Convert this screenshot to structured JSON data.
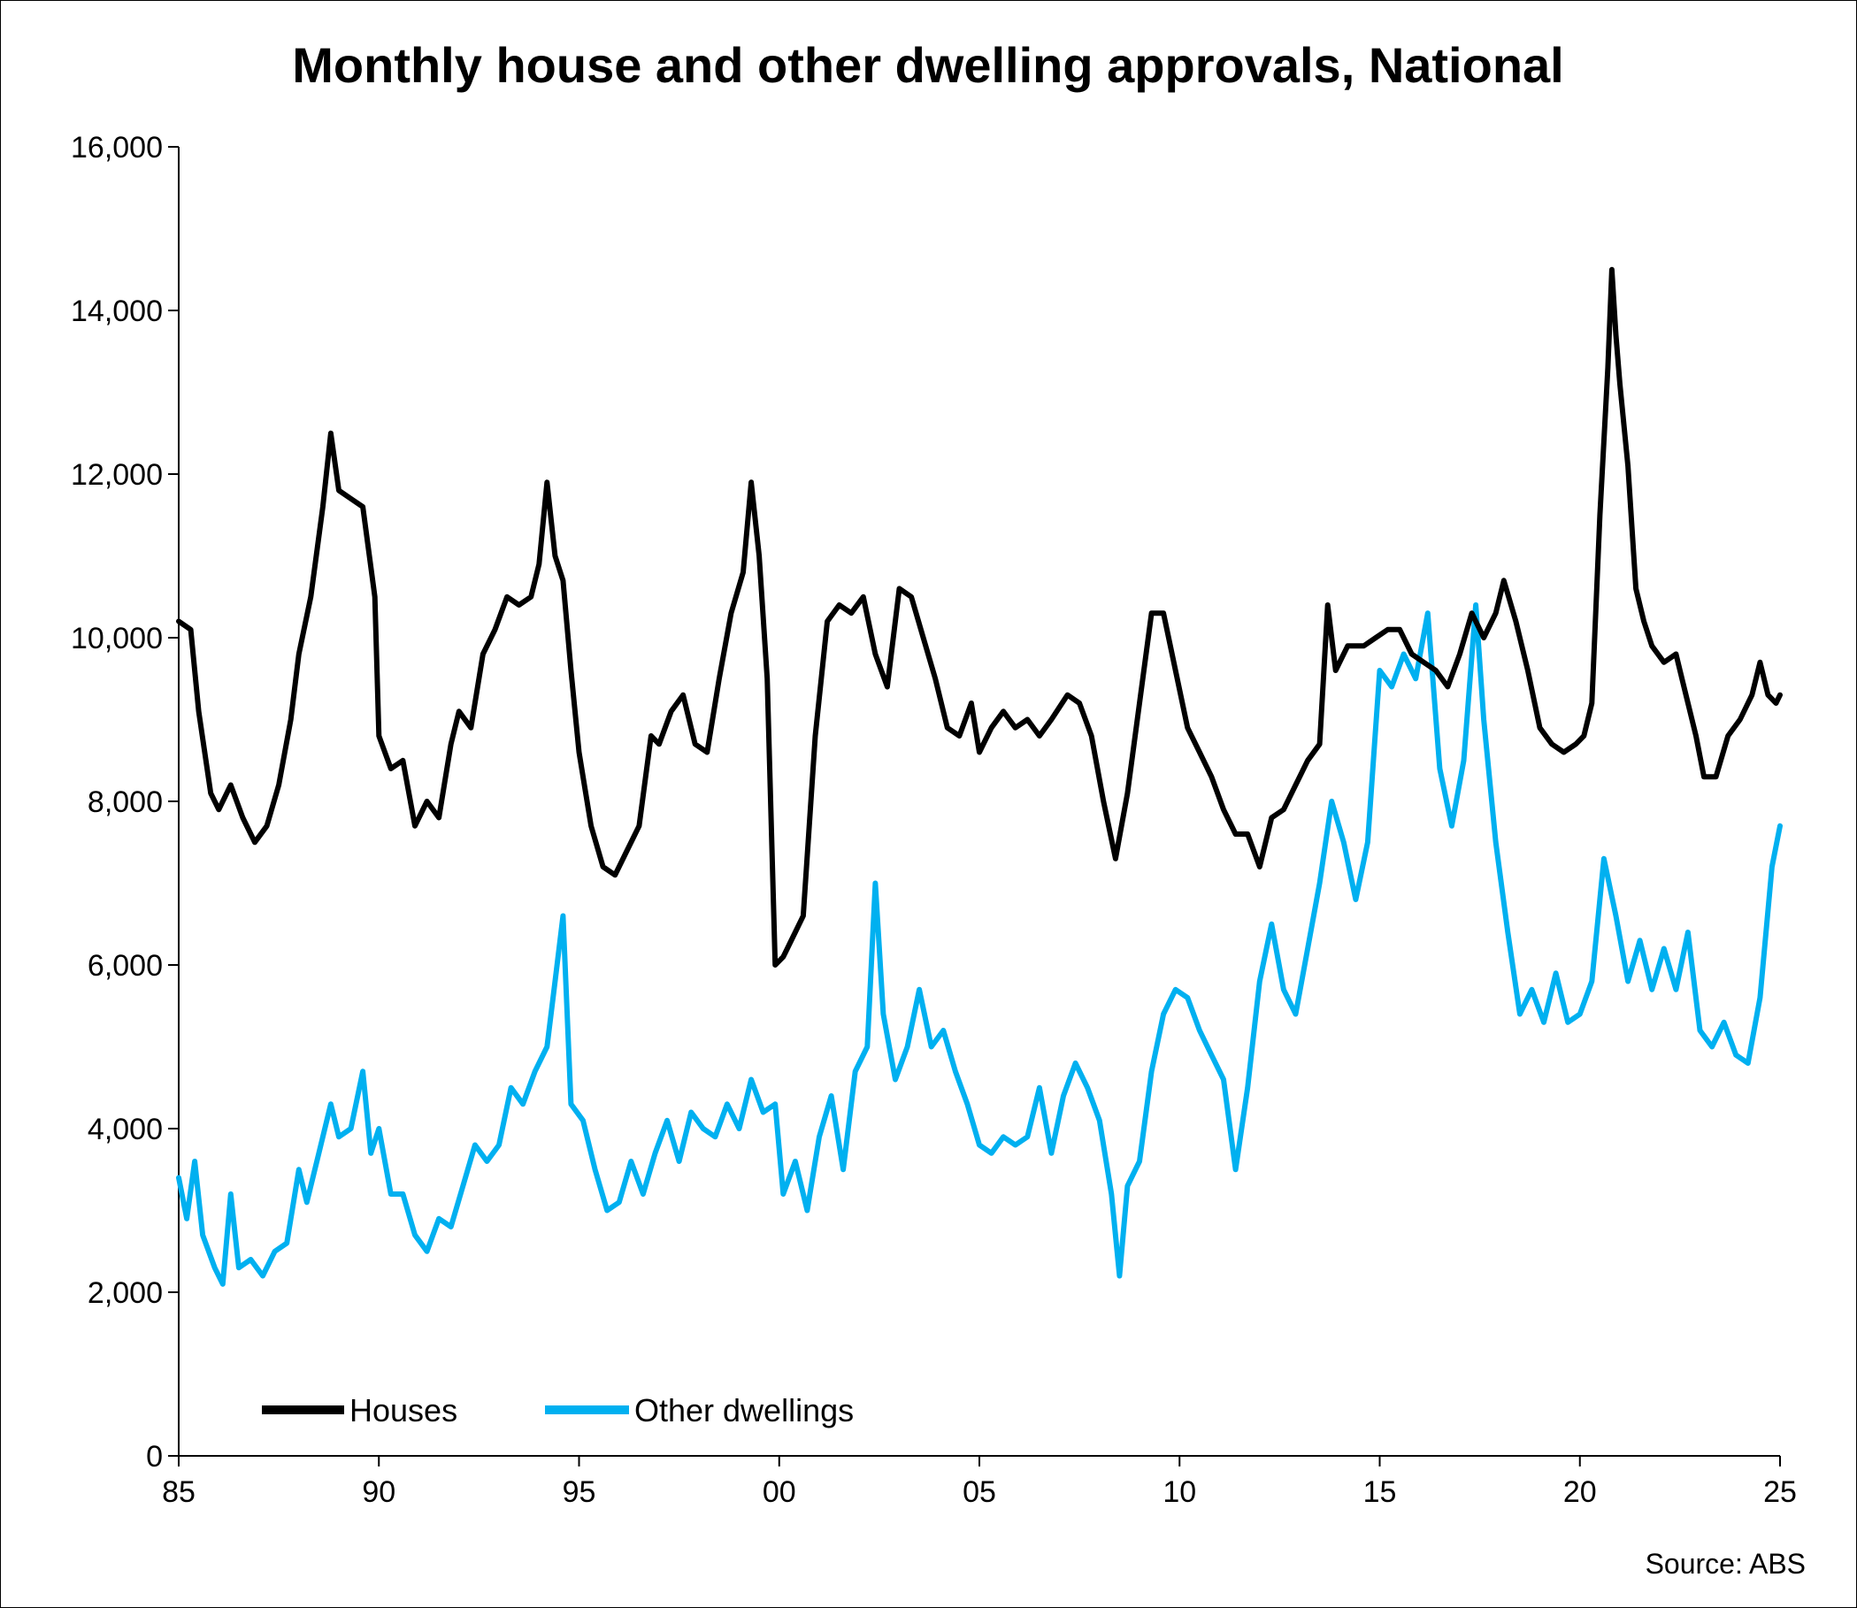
{
  "chart_data": {
    "type": "line",
    "title": "Monthly house and other dwelling approvals, National",
    "source": "Source: ABS",
    "xlabel": "",
    "ylabel": "",
    "xlim": [
      1985,
      2025
    ],
    "ylim": [
      0,
      16000
    ],
    "x_ticks": [
      {
        "value": 1985,
        "label": "85"
      },
      {
        "value": 1990,
        "label": "90"
      },
      {
        "value": 1995,
        "label": "95"
      },
      {
        "value": 2000,
        "label": "00"
      },
      {
        "value": 2005,
        "label": "05"
      },
      {
        "value": 2010,
        "label": "10"
      },
      {
        "value": 2015,
        "label": "15"
      },
      {
        "value": 2020,
        "label": "20"
      },
      {
        "value": 2025,
        "label": "25"
      }
    ],
    "y_ticks": [
      {
        "value": 0,
        "label": "0"
      },
      {
        "value": 2000,
        "label": "2,000"
      },
      {
        "value": 4000,
        "label": "4,000"
      },
      {
        "value": 6000,
        "label": "6,000"
      },
      {
        "value": 8000,
        "label": "8,000"
      },
      {
        "value": 10000,
        "label": "10,000"
      },
      {
        "value": 12000,
        "label": "12,000"
      },
      {
        "value": 14000,
        "label": "14,000"
      },
      {
        "value": 16000,
        "label": "16,000"
      }
    ],
    "legend_position": "bottom-left",
    "series": [
      {
        "name": "Houses",
        "color": "#000000",
        "points": [
          [
            1985.0,
            10200
          ],
          [
            1985.3,
            10100
          ],
          [
            1985.5,
            9100
          ],
          [
            1985.8,
            8100
          ],
          [
            1986.0,
            7900
          ],
          [
            1986.3,
            8200
          ],
          [
            1986.6,
            7800
          ],
          [
            1986.9,
            7500
          ],
          [
            1987.2,
            7700
          ],
          [
            1987.5,
            8200
          ],
          [
            1987.8,
            9000
          ],
          [
            1988.0,
            9800
          ],
          [
            1988.3,
            10500
          ],
          [
            1988.6,
            11600
          ],
          [
            1988.8,
            12500
          ],
          [
            1989.0,
            11800
          ],
          [
            1989.3,
            11700
          ],
          [
            1989.6,
            11600
          ],
          [
            1989.9,
            10500
          ],
          [
            1990.0,
            8800
          ],
          [
            1990.3,
            8400
          ],
          [
            1990.6,
            8500
          ],
          [
            1990.9,
            7700
          ],
          [
            1991.2,
            8000
          ],
          [
            1991.5,
            7800
          ],
          [
            1991.8,
            8700
          ],
          [
            1992.0,
            9100
          ],
          [
            1992.3,
            8900
          ],
          [
            1992.6,
            9800
          ],
          [
            1992.9,
            10100
          ],
          [
            1993.2,
            10500
          ],
          [
            1993.5,
            10400
          ],
          [
            1993.8,
            10500
          ],
          [
            1994.0,
            10900
          ],
          [
            1994.2,
            11900
          ],
          [
            1994.4,
            11000
          ],
          [
            1994.6,
            10700
          ],
          [
            1994.8,
            9600
          ],
          [
            1995.0,
            8600
          ],
          [
            1995.3,
            7700
          ],
          [
            1995.6,
            7200
          ],
          [
            1995.9,
            7100
          ],
          [
            1996.2,
            7400
          ],
          [
            1996.5,
            7700
          ],
          [
            1996.8,
            8800
          ],
          [
            1997.0,
            8700
          ],
          [
            1997.3,
            9100
          ],
          [
            1997.6,
            9300
          ],
          [
            1997.9,
            8700
          ],
          [
            1998.2,
            8600
          ],
          [
            1998.5,
            9500
          ],
          [
            1998.8,
            10300
          ],
          [
            1999.1,
            10800
          ],
          [
            1999.3,
            11900
          ],
          [
            1999.5,
            11000
          ],
          [
            1999.7,
            9500
          ],
          [
            1999.9,
            6000
          ],
          [
            2000.1,
            6100
          ],
          [
            2000.4,
            6400
          ],
          [
            2000.6,
            6600
          ],
          [
            2000.9,
            8800
          ],
          [
            2001.2,
            10200
          ],
          [
            2001.5,
            10400
          ],
          [
            2001.8,
            10300
          ],
          [
            2002.1,
            10500
          ],
          [
            2002.4,
            9800
          ],
          [
            2002.7,
            9400
          ],
          [
            2003.0,
            10600
          ],
          [
            2003.3,
            10500
          ],
          [
            2003.6,
            10000
          ],
          [
            2003.9,
            9500
          ],
          [
            2004.2,
            8900
          ],
          [
            2004.5,
            8800
          ],
          [
            2004.8,
            9200
          ],
          [
            2005.0,
            8600
          ],
          [
            2005.3,
            8900
          ],
          [
            2005.6,
            9100
          ],
          [
            2005.9,
            8900
          ],
          [
            2006.2,
            9000
          ],
          [
            2006.5,
            8800
          ],
          [
            2006.8,
            9000
          ],
          [
            2007.2,
            9300
          ],
          [
            2007.5,
            9200
          ],
          [
            2007.8,
            8800
          ],
          [
            2008.1,
            8000
          ],
          [
            2008.4,
            7300
          ],
          [
            2008.7,
            8100
          ],
          [
            2009.0,
            9200
          ],
          [
            2009.3,
            10300
          ],
          [
            2009.6,
            10300
          ],
          [
            2009.9,
            9600
          ],
          [
            2010.2,
            8900
          ],
          [
            2010.5,
            8600
          ],
          [
            2010.8,
            8300
          ],
          [
            2011.1,
            7900
          ],
          [
            2011.4,
            7600
          ],
          [
            2011.7,
            7600
          ],
          [
            2012.0,
            7200
          ],
          [
            2012.3,
            7800
          ],
          [
            2012.6,
            7900
          ],
          [
            2012.9,
            8200
          ],
          [
            2013.2,
            8500
          ],
          [
            2013.5,
            8700
          ],
          [
            2013.7,
            10400
          ],
          [
            2013.9,
            9600
          ],
          [
            2014.2,
            9900
          ],
          [
            2014.6,
            9900
          ],
          [
            2014.9,
            10000
          ],
          [
            2015.2,
            10100
          ],
          [
            2015.5,
            10100
          ],
          [
            2015.8,
            9800
          ],
          [
            2016.1,
            9700
          ],
          [
            2016.4,
            9600
          ],
          [
            2016.7,
            9400
          ],
          [
            2017.0,
            9800
          ],
          [
            2017.3,
            10300
          ],
          [
            2017.6,
            10000
          ],
          [
            2017.9,
            10300
          ],
          [
            2018.1,
            10700
          ],
          [
            2018.4,
            10200
          ],
          [
            2018.7,
            9600
          ],
          [
            2019.0,
            8900
          ],
          [
            2019.3,
            8700
          ],
          [
            2019.6,
            8600
          ],
          [
            2019.9,
            8700
          ],
          [
            2020.1,
            8800
          ],
          [
            2020.3,
            9200
          ],
          [
            2020.5,
            11500
          ],
          [
            2020.7,
            13300
          ],
          [
            2020.8,
            14500
          ],
          [
            2020.9,
            13700
          ],
          [
            2021.0,
            13100
          ],
          [
            2021.2,
            12100
          ],
          [
            2021.4,
            10600
          ],
          [
            2021.6,
            10200
          ],
          [
            2021.8,
            9900
          ],
          [
            2022.1,
            9700
          ],
          [
            2022.4,
            9800
          ],
          [
            2022.6,
            9400
          ],
          [
            2022.9,
            8800
          ],
          [
            2023.1,
            8300
          ],
          [
            2023.4,
            8300
          ],
          [
            2023.7,
            8800
          ],
          [
            2024.0,
            9000
          ],
          [
            2024.3,
            9300
          ],
          [
            2024.5,
            9700
          ],
          [
            2024.7,
            9300
          ],
          [
            2024.9,
            9200
          ],
          [
            2025.0,
            9300
          ]
        ]
      },
      {
        "name": "Other dwellings",
        "color": "#00B0F0",
        "points": [
          [
            1985.0,
            3400
          ],
          [
            1985.2,
            2900
          ],
          [
            1985.4,
            3600
          ],
          [
            1985.6,
            2700
          ],
          [
            1985.9,
            2300
          ],
          [
            1986.1,
            2100
          ],
          [
            1986.3,
            3200
          ],
          [
            1986.5,
            2300
          ],
          [
            1986.8,
            2400
          ],
          [
            1987.1,
            2200
          ],
          [
            1987.4,
            2500
          ],
          [
            1987.7,
            2600
          ],
          [
            1988.0,
            3500
          ],
          [
            1988.2,
            3100
          ],
          [
            1988.5,
            3700
          ],
          [
            1988.8,
            4300
          ],
          [
            1989.0,
            3900
          ],
          [
            1989.3,
            4000
          ],
          [
            1989.6,
            4700
          ],
          [
            1989.8,
            3700
          ],
          [
            1990.0,
            4000
          ],
          [
            1990.3,
            3200
          ],
          [
            1990.6,
            3200
          ],
          [
            1990.9,
            2700
          ],
          [
            1991.2,
            2500
          ],
          [
            1991.5,
            2900
          ],
          [
            1991.8,
            2800
          ],
          [
            1992.1,
            3300
          ],
          [
            1992.4,
            3800
          ],
          [
            1992.7,
            3600
          ],
          [
            1993.0,
            3800
          ],
          [
            1993.3,
            4500
          ],
          [
            1993.6,
            4300
          ],
          [
            1993.9,
            4700
          ],
          [
            1994.2,
            5000
          ],
          [
            1994.4,
            5800
          ],
          [
            1994.6,
            6600
          ],
          [
            1994.8,
            4300
          ],
          [
            1995.1,
            4100
          ],
          [
            1995.4,
            3500
          ],
          [
            1995.7,
            3000
          ],
          [
            1996.0,
            3100
          ],
          [
            1996.3,
            3600
          ],
          [
            1996.6,
            3200
          ],
          [
            1996.9,
            3700
          ],
          [
            1997.2,
            4100
          ],
          [
            1997.5,
            3600
          ],
          [
            1997.8,
            4200
          ],
          [
            1998.1,
            4000
          ],
          [
            1998.4,
            3900
          ],
          [
            1998.7,
            4300
          ],
          [
            1999.0,
            4000
          ],
          [
            1999.3,
            4600
          ],
          [
            1999.6,
            4200
          ],
          [
            1999.9,
            4300
          ],
          [
            2000.1,
            3200
          ],
          [
            2000.4,
            3600
          ],
          [
            2000.7,
            3000
          ],
          [
            2001.0,
            3900
          ],
          [
            2001.3,
            4400
          ],
          [
            2001.6,
            3500
          ],
          [
            2001.9,
            4700
          ],
          [
            2002.2,
            5000
          ],
          [
            2002.4,
            7000
          ],
          [
            2002.6,
            5400
          ],
          [
            2002.9,
            4600
          ],
          [
            2003.2,
            5000
          ],
          [
            2003.5,
            5700
          ],
          [
            2003.8,
            5000
          ],
          [
            2004.1,
            5200
          ],
          [
            2004.4,
            4700
          ],
          [
            2004.7,
            4300
          ],
          [
            2005.0,
            3800
          ],
          [
            2005.3,
            3700
          ],
          [
            2005.6,
            3900
          ],
          [
            2005.9,
            3800
          ],
          [
            2006.2,
            3900
          ],
          [
            2006.5,
            4500
          ],
          [
            2006.8,
            3700
          ],
          [
            2007.1,
            4400
          ],
          [
            2007.4,
            4800
          ],
          [
            2007.7,
            4500
          ],
          [
            2008.0,
            4100
          ],
          [
            2008.3,
            3200
          ],
          [
            2008.5,
            2200
          ],
          [
            2008.7,
            3300
          ],
          [
            2009.0,
            3600
          ],
          [
            2009.3,
            4700
          ],
          [
            2009.6,
            5400
          ],
          [
            2009.9,
            5700
          ],
          [
            2010.2,
            5600
          ],
          [
            2010.5,
            5200
          ],
          [
            2010.8,
            4900
          ],
          [
            2011.1,
            4600
          ],
          [
            2011.4,
            3500
          ],
          [
            2011.7,
            4500
          ],
          [
            2012.0,
            5800
          ],
          [
            2012.3,
            6500
          ],
          [
            2012.6,
            5700
          ],
          [
            2012.9,
            5400
          ],
          [
            2013.2,
            6200
          ],
          [
            2013.5,
            7000
          ],
          [
            2013.8,
            8000
          ],
          [
            2014.1,
            7500
          ],
          [
            2014.4,
            6800
          ],
          [
            2014.7,
            7500
          ],
          [
            2015.0,
            9600
          ],
          [
            2015.3,
            9400
          ],
          [
            2015.6,
            9800
          ],
          [
            2015.9,
            9500
          ],
          [
            2016.2,
            10300
          ],
          [
            2016.5,
            8400
          ],
          [
            2016.8,
            7700
          ],
          [
            2017.1,
            8500
          ],
          [
            2017.4,
            10400
          ],
          [
            2017.6,
            9000
          ],
          [
            2017.9,
            7500
          ],
          [
            2018.2,
            6400
          ],
          [
            2018.5,
            5400
          ],
          [
            2018.8,
            5700
          ],
          [
            2019.1,
            5300
          ],
          [
            2019.4,
            5900
          ],
          [
            2019.7,
            5300
          ],
          [
            2020.0,
            5400
          ],
          [
            2020.3,
            5800
          ],
          [
            2020.6,
            7300
          ],
          [
            2020.9,
            6600
          ],
          [
            2021.2,
            5800
          ],
          [
            2021.5,
            6300
          ],
          [
            2021.8,
            5700
          ],
          [
            2022.1,
            6200
          ],
          [
            2022.4,
            5700
          ],
          [
            2022.7,
            6400
          ],
          [
            2023.0,
            5200
          ],
          [
            2023.3,
            5000
          ],
          [
            2023.6,
            5300
          ],
          [
            2023.9,
            4900
          ],
          [
            2024.2,
            4800
          ],
          [
            2024.5,
            5600
          ],
          [
            2024.8,
            7200
          ],
          [
            2025.0,
            7700
          ]
        ]
      }
    ]
  }
}
